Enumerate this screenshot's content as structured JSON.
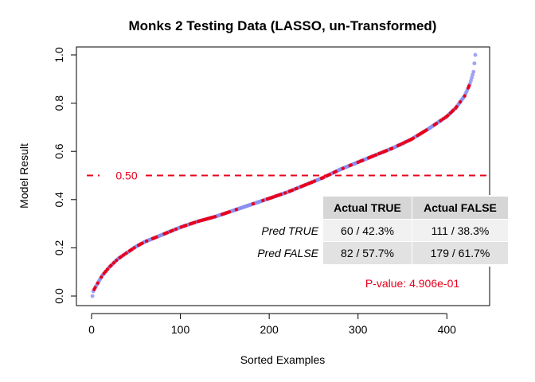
{
  "chart_data": {
    "type": "scatter",
    "title": "Monks 2 Testing Data (LASSO, un-Transformed)",
    "xlabel": "Sorted Examples",
    "ylabel": "Model Result",
    "xlim": [
      0,
      432
    ],
    "ylim": [
      0,
      1
    ],
    "x_ticks": [
      "0",
      "100",
      "200",
      "300",
      "400"
    ],
    "y_ticks": [
      "0.0",
      "0.2",
      "0.4",
      "0.6",
      "0.8",
      "1.0"
    ],
    "n_examples": 432,
    "curve_points": [
      [
        1,
        0.0
      ],
      [
        2,
        0.02
      ],
      [
        4,
        0.035
      ],
      [
        8,
        0.06
      ],
      [
        12,
        0.085
      ],
      [
        20,
        0.12
      ],
      [
        30,
        0.155
      ],
      [
        40,
        0.18
      ],
      [
        50,
        0.205
      ],
      [
        60,
        0.225
      ],
      [
        80,
        0.255
      ],
      [
        100,
        0.285
      ],
      [
        120,
        0.31
      ],
      [
        140,
        0.33
      ],
      [
        160,
        0.355
      ],
      [
        180,
        0.38
      ],
      [
        200,
        0.405
      ],
      [
        220,
        0.43
      ],
      [
        240,
        0.46
      ],
      [
        260,
        0.49
      ],
      [
        280,
        0.525
      ],
      [
        300,
        0.555
      ],
      [
        320,
        0.585
      ],
      [
        340,
        0.615
      ],
      [
        360,
        0.65
      ],
      [
        380,
        0.695
      ],
      [
        400,
        0.745
      ],
      [
        410,
        0.78
      ],
      [
        420,
        0.83
      ],
      [
        426,
        0.88
      ],
      [
        430,
        0.93
      ],
      [
        432,
        1.0
      ]
    ],
    "series": [
      {
        "name": "Actual TRUE",
        "color": "#e8001c"
      },
      {
        "name": "Actual FALSE",
        "color": "#8a8ff0"
      }
    ],
    "threshold": {
      "value": 0.5,
      "label": "0.50",
      "color": "#e8001c",
      "style": "dashed"
    },
    "p_value": {
      "text": "P-value: 4.906e-01",
      "color": "#e8001c"
    },
    "confusion_table": {
      "headers": [
        "Actual TRUE",
        "Actual FALSE"
      ],
      "rows": [
        {
          "label": "Pred TRUE",
          "cells": [
            "60 / 42.3%",
            "111 / 38.3%"
          ]
        },
        {
          "label": "Pred FALSE",
          "cells": [
            "82 / 57.7%",
            "179 / 61.7%"
          ]
        }
      ]
    },
    "grid": false,
    "legend": "none"
  }
}
